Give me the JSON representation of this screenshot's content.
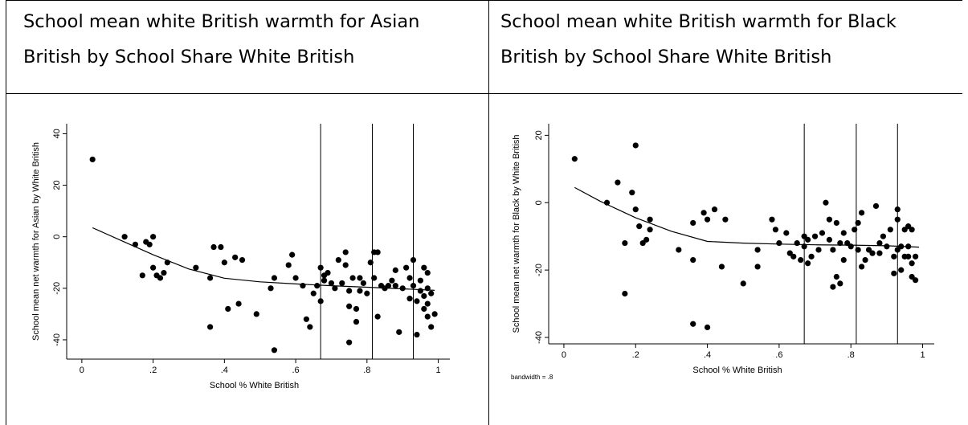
{
  "table": {
    "left_header": [
      "School mean white British warmth for Asian",
      "British by School Share White British"
    ],
    "right_header": [
      "School mean white British warmth for Black",
      "British by School Share White British"
    ]
  },
  "chart_data": [
    {
      "type": "scatter",
      "title": "",
      "xlabel": "School % White British",
      "ylabel": "School mean net warmth for Asian by White British",
      "xlim": [
        -0.02,
        1.01
      ],
      "ylim": [
        -45,
        42
      ],
      "xticks": [
        0,
        0.2,
        0.4,
        0.6,
        0.8,
        1
      ],
      "xtick_labels": [
        "0",
        ".2",
        ".4",
        ".6",
        ".8",
        "1"
      ],
      "yticks": [
        -40,
        -20,
        0,
        20,
        40
      ],
      "ytick_labels": [
        "-40",
        "-20",
        "0",
        "20",
        "40"
      ],
      "vlines": [
        0.67,
        0.815,
        0.93
      ],
      "grid": false,
      "note": "",
      "points": [
        [
          0.03,
          30
        ],
        [
          0.12,
          0
        ],
        [
          0.15,
          -3
        ],
        [
          0.17,
          -15
        ],
        [
          0.18,
          -2
        ],
        [
          0.19,
          -3
        ],
        [
          0.2,
          0
        ],
        [
          0.2,
          -12
        ],
        [
          0.21,
          -15
        ],
        [
          0.22,
          -16
        ],
        [
          0.23,
          -14
        ],
        [
          0.24,
          -10
        ],
        [
          0.32,
          -12
        ],
        [
          0.36,
          -16
        ],
        [
          0.37,
          -4
        ],
        [
          0.39,
          -4
        ],
        [
          0.4,
          -10
        ],
        [
          0.41,
          -28
        ],
        [
          0.43,
          -8
        ],
        [
          0.45,
          -9
        ],
        [
          0.36,
          -35
        ],
        [
          0.44,
          -26
        ],
        [
          0.49,
          -30
        ],
        [
          0.54,
          -44
        ],
        [
          0.54,
          -16
        ],
        [
          0.58,
          -11
        ],
        [
          0.59,
          -7
        ],
        [
          0.6,
          -16
        ],
        [
          0.62,
          -19
        ],
        [
          0.63,
          -32
        ],
        [
          0.64,
          -35
        ],
        [
          0.65,
          -22
        ],
        [
          0.66,
          -19
        ],
        [
          0.67,
          -25
        ],
        [
          0.67,
          -12
        ],
        [
          0.68,
          -15
        ],
        [
          0.68,
          -17
        ],
        [
          0.69,
          -14
        ],
        [
          0.7,
          -18
        ],
        [
          0.71,
          -20
        ],
        [
          0.72,
          -9
        ],
        [
          0.73,
          -18
        ],
        [
          0.74,
          -6
        ],
        [
          0.74,
          -11
        ],
        [
          0.75,
          -21
        ],
        [
          0.75,
          -27
        ],
        [
          0.76,
          -16
        ],
        [
          0.77,
          -28
        ],
        [
          0.77,
          -33
        ],
        [
          0.78,
          -16
        ],
        [
          0.78,
          -21
        ],
        [
          0.79,
          -18
        ],
        [
          0.8,
          -22
        ],
        [
          0.81,
          -10
        ],
        [
          0.82,
          -6
        ],
        [
          0.82,
          -16
        ],
        [
          0.83,
          -6
        ],
        [
          0.83,
          -31
        ],
        [
          0.84,
          -19
        ],
        [
          0.85,
          -20
        ],
        [
          0.86,
          -19
        ],
        [
          0.87,
          -17
        ],
        [
          0.88,
          -13
        ],
        [
          0.88,
          -19
        ],
        [
          0.89,
          -37
        ],
        [
          0.9,
          -20
        ],
        [
          0.91,
          -12
        ],
        [
          0.92,
          -16
        ],
        [
          0.92,
          -24
        ],
        [
          0.93,
          -9
        ],
        [
          0.93,
          -19
        ],
        [
          0.94,
          -25
        ],
        [
          0.94,
          -38
        ],
        [
          0.95,
          -17
        ],
        [
          0.95,
          -21
        ],
        [
          0.96,
          -12
        ],
        [
          0.96,
          -23
        ],
        [
          0.96,
          -28
        ],
        [
          0.97,
          -14
        ],
        [
          0.97,
          -20
        ],
        [
          0.97,
          -26
        ],
        [
          0.97,
          -31
        ],
        [
          0.98,
          -22
        ],
        [
          0.98,
          -35
        ],
        [
          0.99,
          -30
        ],
        [
          0.75,
          -41
        ],
        [
          0.53,
          -20
        ]
      ],
      "fit_line": [
        [
          0.03,
          3.5
        ],
        [
          0.1,
          -0.8
        ],
        [
          0.2,
          -7
        ],
        [
          0.3,
          -12.5
        ],
        [
          0.4,
          -16.1
        ],
        [
          0.5,
          -17.5
        ],
        [
          0.6,
          -18.3
        ],
        [
          0.7,
          -19
        ],
        [
          0.8,
          -19.6
        ],
        [
          0.9,
          -20.2
        ],
        [
          0.99,
          -20.8
        ]
      ]
    },
    {
      "type": "scatter",
      "title": "",
      "xlabel": "School % White British",
      "ylabel": "School mean net warmth for Black by White British",
      "xlim": [
        -0.02,
        1.01
      ],
      "ylim": [
        -40,
        22
      ],
      "xticks": [
        0,
        0.2,
        0.4,
        0.6,
        0.8,
        1
      ],
      "xtick_labels": [
        "0",
        ".2",
        ".4",
        ".6",
        ".8",
        "1"
      ],
      "yticks": [
        -40,
        -20,
        0,
        20
      ],
      "ytick_labels": [
        "-40",
        "-20",
        "0",
        "20"
      ],
      "vlines": [
        0.67,
        0.815,
        0.93
      ],
      "grid": false,
      "note": "bandwidth = .8",
      "points": [
        [
          0.03,
          13
        ],
        [
          0.12,
          0
        ],
        [
          0.15,
          6
        ],
        [
          0.17,
          -12
        ],
        [
          0.17,
          -27
        ],
        [
          0.19,
          3
        ],
        [
          0.2,
          17
        ],
        [
          0.2,
          -2
        ],
        [
          0.21,
          -7
        ],
        [
          0.22,
          -12
        ],
        [
          0.23,
          -11
        ],
        [
          0.24,
          -8
        ],
        [
          0.24,
          -5
        ],
        [
          0.32,
          -14
        ],
        [
          0.36,
          -6
        ],
        [
          0.36,
          -17
        ],
        [
          0.36,
          -36
        ],
        [
          0.39,
          -3
        ],
        [
          0.4,
          -5
        ],
        [
          0.4,
          -37
        ],
        [
          0.42,
          -2
        ],
        [
          0.44,
          -19
        ],
        [
          0.45,
          -5
        ],
        [
          0.5,
          -24
        ],
        [
          0.54,
          -14
        ],
        [
          0.54,
          -19
        ],
        [
          0.58,
          -5
        ],
        [
          0.59,
          -8
        ],
        [
          0.6,
          -12
        ],
        [
          0.62,
          -9
        ],
        [
          0.63,
          -15
        ],
        [
          0.64,
          -16
        ],
        [
          0.65,
          -12
        ],
        [
          0.66,
          -17
        ],
        [
          0.67,
          -10
        ],
        [
          0.67,
          -13
        ],
        [
          0.68,
          -11
        ],
        [
          0.68,
          -18
        ],
        [
          0.69,
          -16
        ],
        [
          0.7,
          -10
        ],
        [
          0.71,
          -14
        ],
        [
          0.72,
          -9
        ],
        [
          0.73,
          0
        ],
        [
          0.74,
          -5
        ],
        [
          0.74,
          -11
        ],
        [
          0.75,
          -25
        ],
        [
          0.75,
          -14
        ],
        [
          0.76,
          -6
        ],
        [
          0.76,
          -22
        ],
        [
          0.77,
          -24
        ],
        [
          0.77,
          -12
        ],
        [
          0.78,
          -9
        ],
        [
          0.78,
          -17
        ],
        [
          0.79,
          -12
        ],
        [
          0.8,
          -13
        ],
        [
          0.81,
          -8
        ],
        [
          0.82,
          -6
        ],
        [
          0.82,
          -14
        ],
        [
          0.83,
          -3
        ],
        [
          0.83,
          -19
        ],
        [
          0.84,
          -17
        ],
        [
          0.85,
          -14
        ],
        [
          0.86,
          -15
        ],
        [
          0.87,
          -1
        ],
        [
          0.88,
          -12
        ],
        [
          0.88,
          -15
        ],
        [
          0.89,
          -10
        ],
        [
          0.9,
          -13
        ],
        [
          0.91,
          -8
        ],
        [
          0.92,
          -16
        ],
        [
          0.92,
          -21
        ],
        [
          0.93,
          -2
        ],
        [
          0.93,
          -5
        ],
        [
          0.93,
          -14
        ],
        [
          0.94,
          -20
        ],
        [
          0.94,
          -13
        ],
        [
          0.95,
          -8
        ],
        [
          0.95,
          -16
        ],
        [
          0.96,
          -7
        ],
        [
          0.96,
          -16
        ],
        [
          0.96,
          -13
        ],
        [
          0.97,
          -8
        ],
        [
          0.97,
          -18
        ],
        [
          0.97,
          -22
        ],
        [
          0.98,
          -23
        ],
        [
          0.98,
          -16
        ]
      ],
      "fit_line": [
        [
          0.03,
          4.5
        ],
        [
          0.1,
          0.5
        ],
        [
          0.2,
          -4.5
        ],
        [
          0.3,
          -8.5
        ],
        [
          0.4,
          -11.5
        ],
        [
          0.5,
          -12
        ],
        [
          0.6,
          -12.3
        ],
        [
          0.7,
          -12.5
        ],
        [
          0.8,
          -12.6
        ],
        [
          0.9,
          -12.8
        ],
        [
          0.99,
          -13.2
        ]
      ]
    }
  ]
}
